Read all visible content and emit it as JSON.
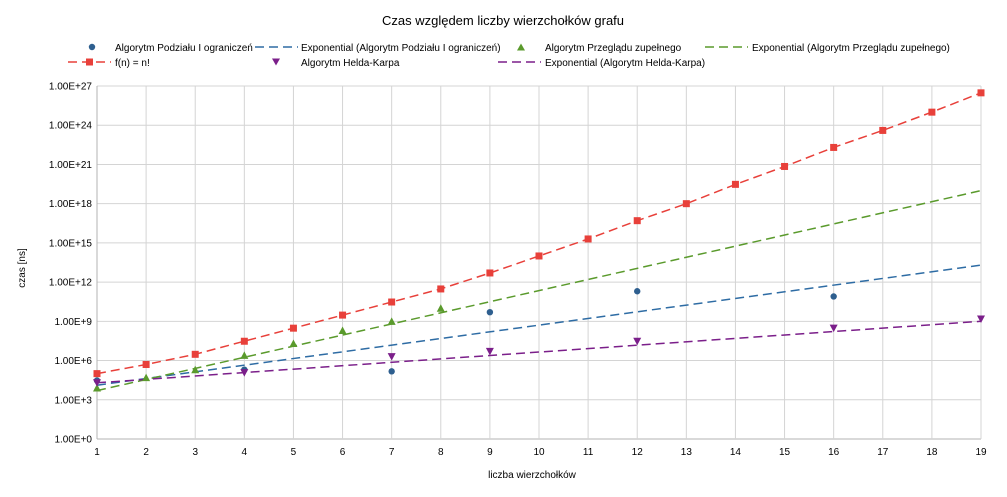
{
  "chart_data": {
    "type": "scatter",
    "title": "Czas względem liczby wierzchołków grafu",
    "xlabel": "liczba wierzchołków",
    "ylabel": "czas [ns]",
    "x_range": [
      1,
      19
    ],
    "y_scale": "log",
    "y_range_log10": [
      0,
      27
    ],
    "y_ticks": [
      "1.00E+0",
      "1.00E+3",
      "1.00E+6",
      "1.00E+9",
      "1.00E+12",
      "1.00E+15",
      "1.00E+18",
      "1.00E+21",
      "1.00E+24",
      "1.00E+27"
    ],
    "x_ticks": [
      "1",
      "2",
      "3",
      "4",
      "5",
      "6",
      "7",
      "8",
      "9",
      "10",
      "11",
      "12",
      "13",
      "14",
      "15",
      "16",
      "17",
      "18",
      "19"
    ],
    "grid": true,
    "legend_position": "top",
    "series": [
      {
        "name": "Algorytm Podziału I ograniczeń",
        "kind": "points",
        "marker": "circle",
        "color": "#2e5f8f",
        "x": [
          1,
          4,
          7,
          9,
          12,
          16
        ],
        "y": [
          30000,
          200000,
          150000,
          5000000000,
          200000000000,
          80000000000
        ]
      },
      {
        "name": "Exponential (Algorytm Podziału I ograniczeń)",
        "kind": "trend",
        "color": "#2e6ca4",
        "x": [
          1,
          19
        ],
        "y": [
          13000,
          20000000000000
        ]
      },
      {
        "name": "Algorytm Przeglądu zupełnego",
        "kind": "points",
        "marker": "triangle",
        "color": "#5a9a2c",
        "x": [
          1,
          2,
          3,
          4,
          5,
          6,
          7,
          8
        ],
        "y": [
          8000,
          50000,
          200000,
          2500000,
          20000000,
          200000000,
          1000000000,
          10000000000
        ]
      },
      {
        "name": "Exponential (Algorytm Przeglądu zupełnego)",
        "kind": "trend",
        "color": "#5a9a2c",
        "x": [
          1,
          19
        ],
        "y": [
          5000,
          10000000000000000000
        ]
      },
      {
        "name": "f(n) = n!",
        "kind": "points-dashed",
        "marker": "square",
        "color": "#e8403a",
        "x": [
          1,
          2,
          3,
          4,
          5,
          6,
          7,
          8,
          9,
          10,
          11,
          12,
          13,
          14,
          15,
          16,
          17,
          18,
          19
        ],
        "y": [
          100000,
          500000,
          3000000,
          30000000,
          300000000,
          3000000000,
          30000000000,
          300000000000,
          5000000000000,
          100000000000000,
          2000000000000000,
          50000000000000000,
          1000000000000000000,
          30000000000000000000,
          700000000000000000000,
          20000000000000000000000,
          400000000000000000000000,
          10000000000000000000000000,
          300000000000000000000000000
        ]
      },
      {
        "name": "Algorytm Helda-Karpa",
        "kind": "points",
        "marker": "triangle-down",
        "color": "#7b1f8a",
        "x": [
          1,
          4,
          7,
          9,
          12,
          16,
          19
        ],
        "y": [
          20000,
          120000,
          2000000,
          5000000,
          30000000,
          300000000,
          1500000000
        ]
      },
      {
        "name": "Exponential (Algorytm Helda-Karpa)",
        "kind": "trend",
        "color": "#7b1f8a",
        "x": [
          1,
          19
        ],
        "y": [
          20000,
          1000000000
        ]
      }
    ]
  }
}
